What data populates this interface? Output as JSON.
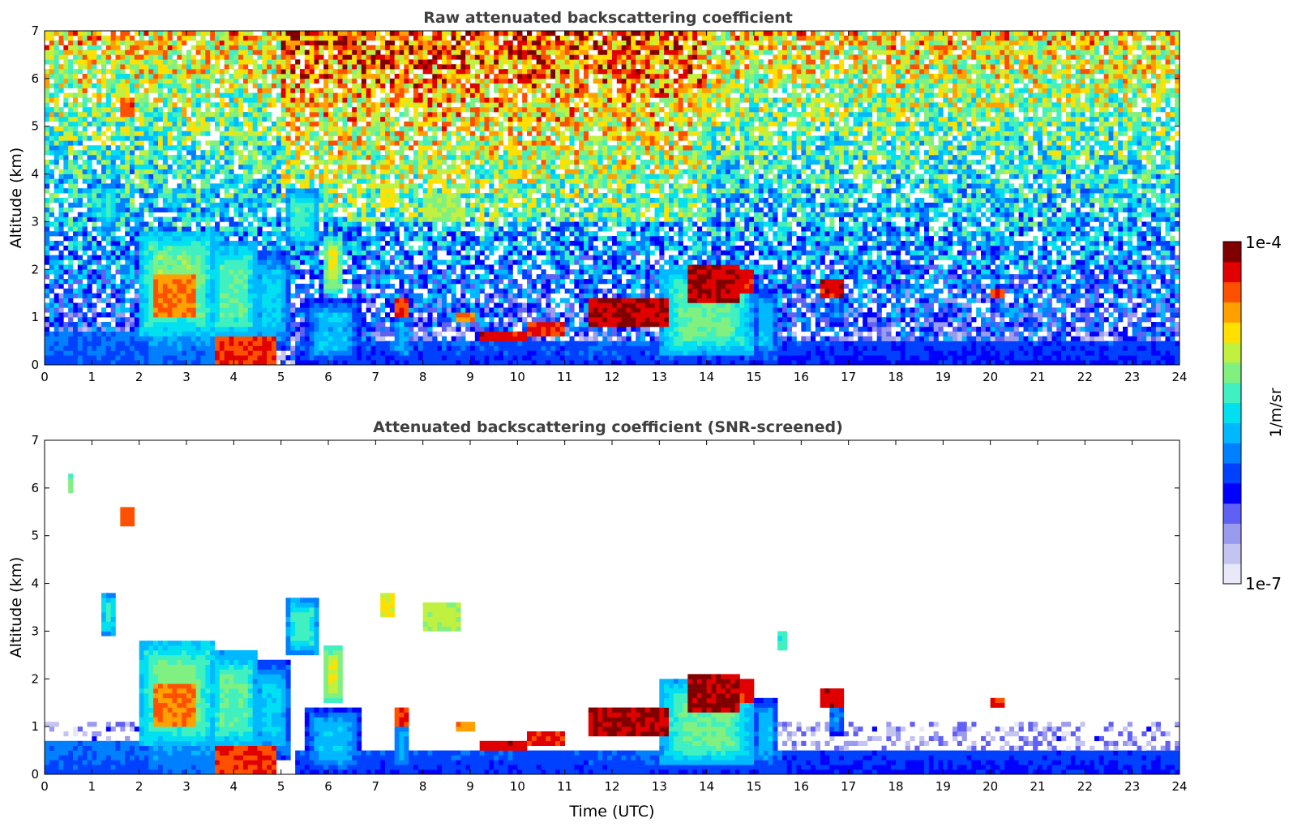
{
  "chart_data": [
    {
      "type": "heatmap",
      "title": "Raw attenuated backscattering coefficient",
      "xlabel": "",
      "ylabel": "Altitude (km)",
      "xlim": [
        0,
        24
      ],
      "ylim": [
        0,
        7
      ],
      "xticks": [
        "0",
        "1",
        "2",
        "3",
        "4",
        "5",
        "6",
        "7",
        "8",
        "9",
        "10",
        "11",
        "12",
        "13",
        "14",
        "15",
        "16",
        "17",
        "18",
        "19",
        "20",
        "21",
        "22",
        "23",
        "24"
      ],
      "yticks": [
        "0",
        "1",
        "2",
        "3",
        "4",
        "5",
        "6",
        "7"
      ],
      "screened": false
    },
    {
      "type": "heatmap",
      "title": "Attenuated backscattering coefficient (SNR-screened)",
      "xlabel": "Time (UTC)",
      "ylabel": "Altitude (km)",
      "xlim": [
        0,
        24
      ],
      "ylim": [
        0,
        7
      ],
      "xticks": [
        "0",
        "1",
        "2",
        "3",
        "4",
        "5",
        "6",
        "7",
        "8",
        "9",
        "10",
        "11",
        "12",
        "13",
        "14",
        "15",
        "16",
        "17",
        "18",
        "19",
        "20",
        "21",
        "22",
        "23",
        "24"
      ],
      "yticks": [
        "0",
        "1",
        "2",
        "3",
        "4",
        "5",
        "6",
        "7"
      ],
      "screened": true
    }
  ],
  "features": [
    {
      "t0": 0,
      "t1": 2.2,
      "z0": 0,
      "z1": 0.65,
      "v": 0.35,
      "kind": "layer"
    },
    {
      "t0": 2.2,
      "t1": 3.6,
      "z0": 0,
      "z1": 0.55,
      "v": 0.38,
      "kind": "layer"
    },
    {
      "t0": 5.3,
      "t1": 11.5,
      "z0": 0,
      "z1": 0.5,
      "v": 0.32,
      "kind": "layer"
    },
    {
      "t0": 11.5,
      "t1": 15.6,
      "z0": 0,
      "z1": 0.45,
      "v": 0.33,
      "kind": "layer"
    },
    {
      "t0": 15.6,
      "t1": 24,
      "z0": 0,
      "z1": 0.5,
      "v": 0.3,
      "kind": "layer"
    },
    {
      "t0": 2.0,
      "t1": 3.6,
      "z0": 0.6,
      "z1": 2.8,
      "v": 0.62,
      "kind": "plume"
    },
    {
      "t0": 2.3,
      "t1": 3.2,
      "z0": 1.0,
      "z1": 1.9,
      "v": 0.82,
      "kind": "core"
    },
    {
      "t0": 3.6,
      "t1": 4.9,
      "z0": 0,
      "z1": 0.6,
      "v": 0.88,
      "kind": "core"
    },
    {
      "t0": 3.5,
      "t1": 4.5,
      "z0": 0.5,
      "z1": 2.6,
      "v": 0.58,
      "kind": "plume"
    },
    {
      "t0": 4.4,
      "t1": 5.2,
      "z0": 0.3,
      "z1": 2.4,
      "v": 0.48,
      "kind": "plume"
    },
    {
      "t0": 5.5,
      "t1": 6.7,
      "z0": 0,
      "z1": 1.4,
      "v": 0.45,
      "kind": "plume"
    },
    {
      "t0": 5.9,
      "t1": 6.3,
      "z0": 1.5,
      "z1": 2.7,
      "v": 0.7,
      "kind": "plume"
    },
    {
      "t0": 5.1,
      "t1": 5.8,
      "z0": 2.5,
      "z1": 3.7,
      "v": 0.55,
      "kind": "plume"
    },
    {
      "t0": 1.2,
      "t1": 1.5,
      "z0": 2.9,
      "z1": 3.8,
      "v": 0.55,
      "kind": "plume"
    },
    {
      "t0": 1.65,
      "t1": 1.95,
      "z0": 5.2,
      "z1": 5.55,
      "v": 0.85,
      "kind": "blob"
    },
    {
      "t0": 0.45,
      "t1": 0.6,
      "z0": 5.95,
      "z1": 6.25,
      "v": 0.6,
      "kind": "blob"
    },
    {
      "t0": 7.1,
      "t1": 7.4,
      "z0": 3.3,
      "z1": 3.8,
      "v": 0.72,
      "kind": "blob"
    },
    {
      "t0": 7.4,
      "t1": 7.7,
      "z0": 1.0,
      "z1": 1.4,
      "v": 0.88,
      "kind": "blob"
    },
    {
      "t0": 7.4,
      "t1": 7.7,
      "z0": 0.1,
      "z1": 1.1,
      "v": 0.45,
      "kind": "plume"
    },
    {
      "t0": 8.0,
      "t1": 8.8,
      "z0": 3.0,
      "z1": 3.6,
      "v": 0.66,
      "kind": "blob"
    },
    {
      "t0": 8.7,
      "t1": 9.1,
      "z0": 0.9,
      "z1": 1.1,
      "v": 0.82,
      "kind": "blob"
    },
    {
      "t0": 9.2,
      "t1": 10.2,
      "z0": 0.5,
      "z1": 0.68,
      "v": 0.92,
      "kind": "blob"
    },
    {
      "t0": 10.2,
      "t1": 11.0,
      "z0": 0.6,
      "z1": 0.85,
      "v": 0.9,
      "kind": "blob"
    },
    {
      "t0": 11.5,
      "t1": 13.2,
      "z0": 0.85,
      "z1": 1.35,
      "v": 0.94,
      "kind": "blob"
    },
    {
      "t0": 13.0,
      "t1": 15.0,
      "z0": 0.2,
      "z1": 2.0,
      "v": 0.6,
      "kind": "plume"
    },
    {
      "t0": 13.6,
      "t1": 14.7,
      "z0": 1.3,
      "z1": 2.1,
      "v": 0.95,
      "kind": "core"
    },
    {
      "t0": 14.5,
      "t1": 14.95,
      "z0": 1.5,
      "z1": 2.05,
      "v": 0.9,
      "kind": "blob"
    },
    {
      "t0": 15.0,
      "t1": 15.5,
      "z0": 0.1,
      "z1": 1.6,
      "v": 0.45,
      "kind": "plume"
    },
    {
      "t0": 15.5,
      "t1": 15.7,
      "z0": 2.6,
      "z1": 3.0,
      "v": 0.55,
      "kind": "blob"
    },
    {
      "t0": 16.4,
      "t1": 16.9,
      "z0": 1.4,
      "z1": 1.8,
      "v": 0.92,
      "kind": "blob"
    },
    {
      "t0": 16.6,
      "t1": 16.9,
      "z0": 0.8,
      "z1": 1.5,
      "v": 0.4,
      "kind": "plume"
    },
    {
      "t0": 20.0,
      "t1": 20.3,
      "z0": 1.45,
      "z1": 1.6,
      "v": 0.9,
      "kind": "blob"
    }
  ],
  "colorbar": {
    "label": "1/m/sr",
    "max_label": "1e-4",
    "min_label": "1e-7",
    "colors": [
      "#e8e8f8",
      "#c4c4f0",
      "#9a9aee",
      "#6060f4",
      "#0000ff",
      "#0040ff",
      "#0080ff",
      "#00b8ff",
      "#00e0f0",
      "#40f0c0",
      "#80f080",
      "#c0f040",
      "#ffe000",
      "#ffa000",
      "#ff5000",
      "#e00000",
      "#800000"
    ]
  }
}
